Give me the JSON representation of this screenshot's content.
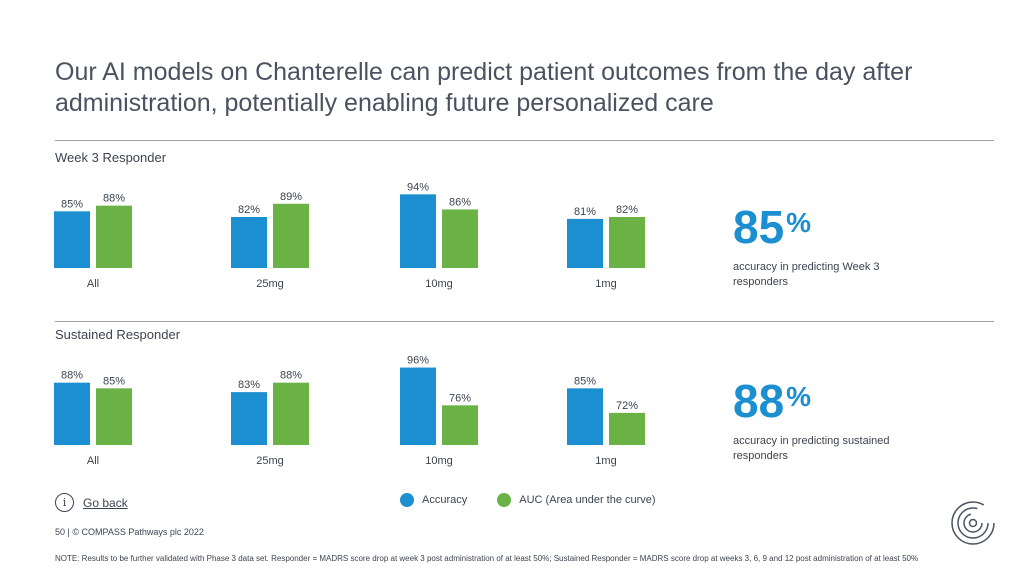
{
  "title": "Our AI models on Chanterelle can predict patient outcomes from the day after administration, potentially enabling future personalized care",
  "colors": {
    "accuracy": "#1b8fd0",
    "auc": "#6ab245",
    "big_stat": "#1b8fd0"
  },
  "chart_data": [
    {
      "type": "bar",
      "title": "Week 3 Responder",
      "categories": [
        "All",
        "25mg",
        "10mg",
        "1mg"
      ],
      "series": [
        {
          "name": "Accuracy",
          "values": [
            85,
            82,
            94,
            81
          ]
        },
        {
          "name": "AUC (Area under the curve)",
          "values": [
            88,
            89,
            86,
            82
          ]
        }
      ],
      "value_labels": [
        [
          "85%",
          "82%",
          "94%",
          "81%"
        ],
        [
          "88%",
          "89%",
          "86%",
          "82%"
        ]
      ],
      "xlabel": "",
      "ylabel": "",
      "ylim": [
        0,
        100
      ]
    },
    {
      "type": "bar",
      "title": "Sustained Responder",
      "categories": [
        "All",
        "25mg",
        "10mg",
        "1mg"
      ],
      "series": [
        {
          "name": "Accuracy",
          "values": [
            88,
            83,
            96,
            85
          ]
        },
        {
          "name": "AUC (Area under the curve)",
          "values": [
            85,
            88,
            76,
            72
          ]
        }
      ],
      "value_labels": [
        [
          "88%",
          "83%",
          "96%",
          "85%"
        ],
        [
          "85%",
          "88%",
          "76%",
          "72%"
        ]
      ],
      "xlabel": "",
      "ylabel": "",
      "ylim": [
        0,
        100
      ]
    }
  ],
  "stats": [
    {
      "value": "85",
      "unit": "%",
      "description": "accuracy in predicting Week 3 responders"
    },
    {
      "value": "88",
      "unit": "%",
      "description": "accuracy in predicting sustained responders"
    }
  ],
  "legend": {
    "accuracy": "Accuracy",
    "auc": "AUC (Area under the curve)"
  },
  "go_back": {
    "label": "Go back",
    "icon": "info-icon"
  },
  "footer": "50  |  © COMPASS Pathways plc 2022",
  "note": "NOTE: Results to be further validated with Phase 3 data set. Responder = MADRS score drop at week 3 post administration of at least 50%; Sustained Responder = MADRS score drop at weeks 3, 6, 9 and 12 post administration of at least 50%"
}
